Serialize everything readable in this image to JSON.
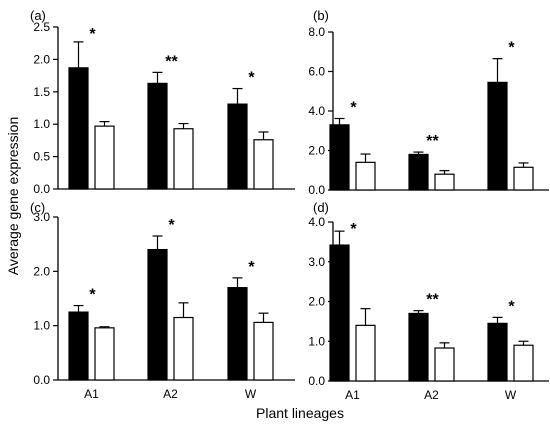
{
  "figure": {
    "ylabel": "Average gene expression",
    "xlabel": "Plant lineages"
  },
  "chart_data": [
    {
      "type": "bar",
      "panel": "(a)",
      "categories": [
        "A1",
        "A2",
        "W"
      ],
      "ylim": [
        0,
        2.5
      ],
      "yticks": [
        "0.0",
        "0.5",
        "1.0",
        "1.5",
        "2.0",
        "2.5"
      ],
      "series": [
        {
          "color": "#000000",
          "values": [
            1.87,
            1.63,
            1.31
          ],
          "errors": [
            0.4,
            0.17,
            0.24
          ]
        },
        {
          "color": "#ffffff",
          "values": [
            0.97,
            0.93,
            0.76
          ],
          "errors": [
            0.07,
            0.08,
            0.12
          ]
        }
      ],
      "significance": [
        "*",
        "**",
        "*"
      ]
    },
    {
      "type": "bar",
      "panel": "(b)",
      "categories": [
        "A1",
        "A2",
        "W"
      ],
      "ylim": [
        0,
        8
      ],
      "yticks": [
        "0.0",
        "2.0",
        "4.0",
        "6.0",
        "8.0"
      ],
      "series": [
        {
          "color": "#000000",
          "values": [
            3.3,
            1.8,
            5.45
          ],
          "errors": [
            0.32,
            0.12,
            1.2
          ]
        },
        {
          "color": "#ffffff",
          "values": [
            1.4,
            0.8,
            1.15
          ],
          "errors": [
            0.42,
            0.18,
            0.22
          ]
        }
      ],
      "significance": [
        "*",
        "**",
        "*"
      ]
    },
    {
      "type": "bar",
      "panel": "(c)",
      "categories": [
        "A1",
        "A2",
        "W"
      ],
      "ylim": [
        0,
        3
      ],
      "yticks": [
        "0.0",
        "1.0",
        "2.0",
        "3.0"
      ],
      "series": [
        {
          "color": "#000000",
          "values": [
            1.25,
            2.4,
            1.7
          ],
          "errors": [
            0.12,
            0.25,
            0.18
          ]
        },
        {
          "color": "#ffffff",
          "values": [
            0.96,
            1.15,
            1.06
          ],
          "errors": [
            0.02,
            0.27,
            0.17
          ]
        }
      ],
      "significance": [
        "*",
        "*",
        "*"
      ]
    },
    {
      "type": "bar",
      "panel": "(d)",
      "categories": [
        "A1",
        "A2",
        "W"
      ],
      "ylim": [
        0,
        4
      ],
      "yticks": [
        "0.0",
        "1.0",
        "2.0",
        "3.0",
        "4.0"
      ],
      "series": [
        {
          "color": "#000000",
          "values": [
            3.42,
            1.7,
            1.45
          ],
          "errors": [
            0.35,
            0.07,
            0.15
          ]
        },
        {
          "color": "#ffffff",
          "values": [
            1.4,
            0.83,
            0.9
          ],
          "errors": [
            0.42,
            0.13,
            0.1
          ]
        }
      ],
      "significance": [
        "*",
        "**",
        "*"
      ]
    }
  ]
}
